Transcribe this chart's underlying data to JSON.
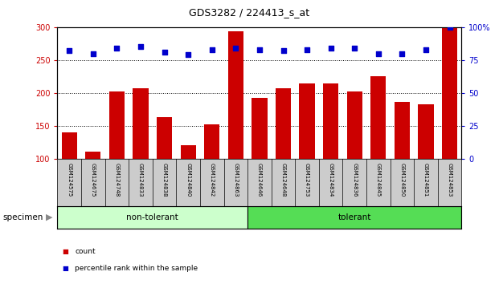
{
  "title": "GDS3282 / 224413_s_at",
  "categories": [
    "GSM124575",
    "GSM124675",
    "GSM124748",
    "GSM124833",
    "GSM124838",
    "GSM124840",
    "GSM124842",
    "GSM124863",
    "GSM124646",
    "GSM124648",
    "GSM124753",
    "GSM124834",
    "GSM124836",
    "GSM124845",
    "GSM124850",
    "GSM124851",
    "GSM124853"
  ],
  "bar_values": [
    140,
    111,
    202,
    207,
    164,
    121,
    153,
    293,
    193,
    207,
    215,
    214,
    202,
    225,
    186,
    183,
    300
  ],
  "percentile_values": [
    82,
    80,
    84,
    85,
    81,
    79,
    83,
    84,
    83,
    82,
    83,
    84,
    84,
    80,
    80,
    83,
    100
  ],
  "non_tolerant_count": 8,
  "tolerant_count": 9,
  "bar_color": "#cc0000",
  "percentile_color": "#0000cc",
  "ylim_left": [
    100,
    300
  ],
  "ylim_right": [
    0,
    100
  ],
  "yticks_left": [
    100,
    150,
    200,
    250,
    300
  ],
  "yticks_right": [
    0,
    25,
    50,
    75,
    100
  ],
  "ytick_labels_right": [
    "0",
    "25",
    "50",
    "75",
    "100%"
  ],
  "legend_count_label": "count",
  "legend_percentile_label": "percentile rank within the sample",
  "group_label_nontolerant": "non-tolerant",
  "group_label_tolerant": "tolerant",
  "specimen_label": "specimen",
  "non_tolerant_color": "#ccffcc",
  "tolerant_color": "#55dd55",
  "tick_area_color": "#cccccc",
  "background_color": "#ffffff"
}
